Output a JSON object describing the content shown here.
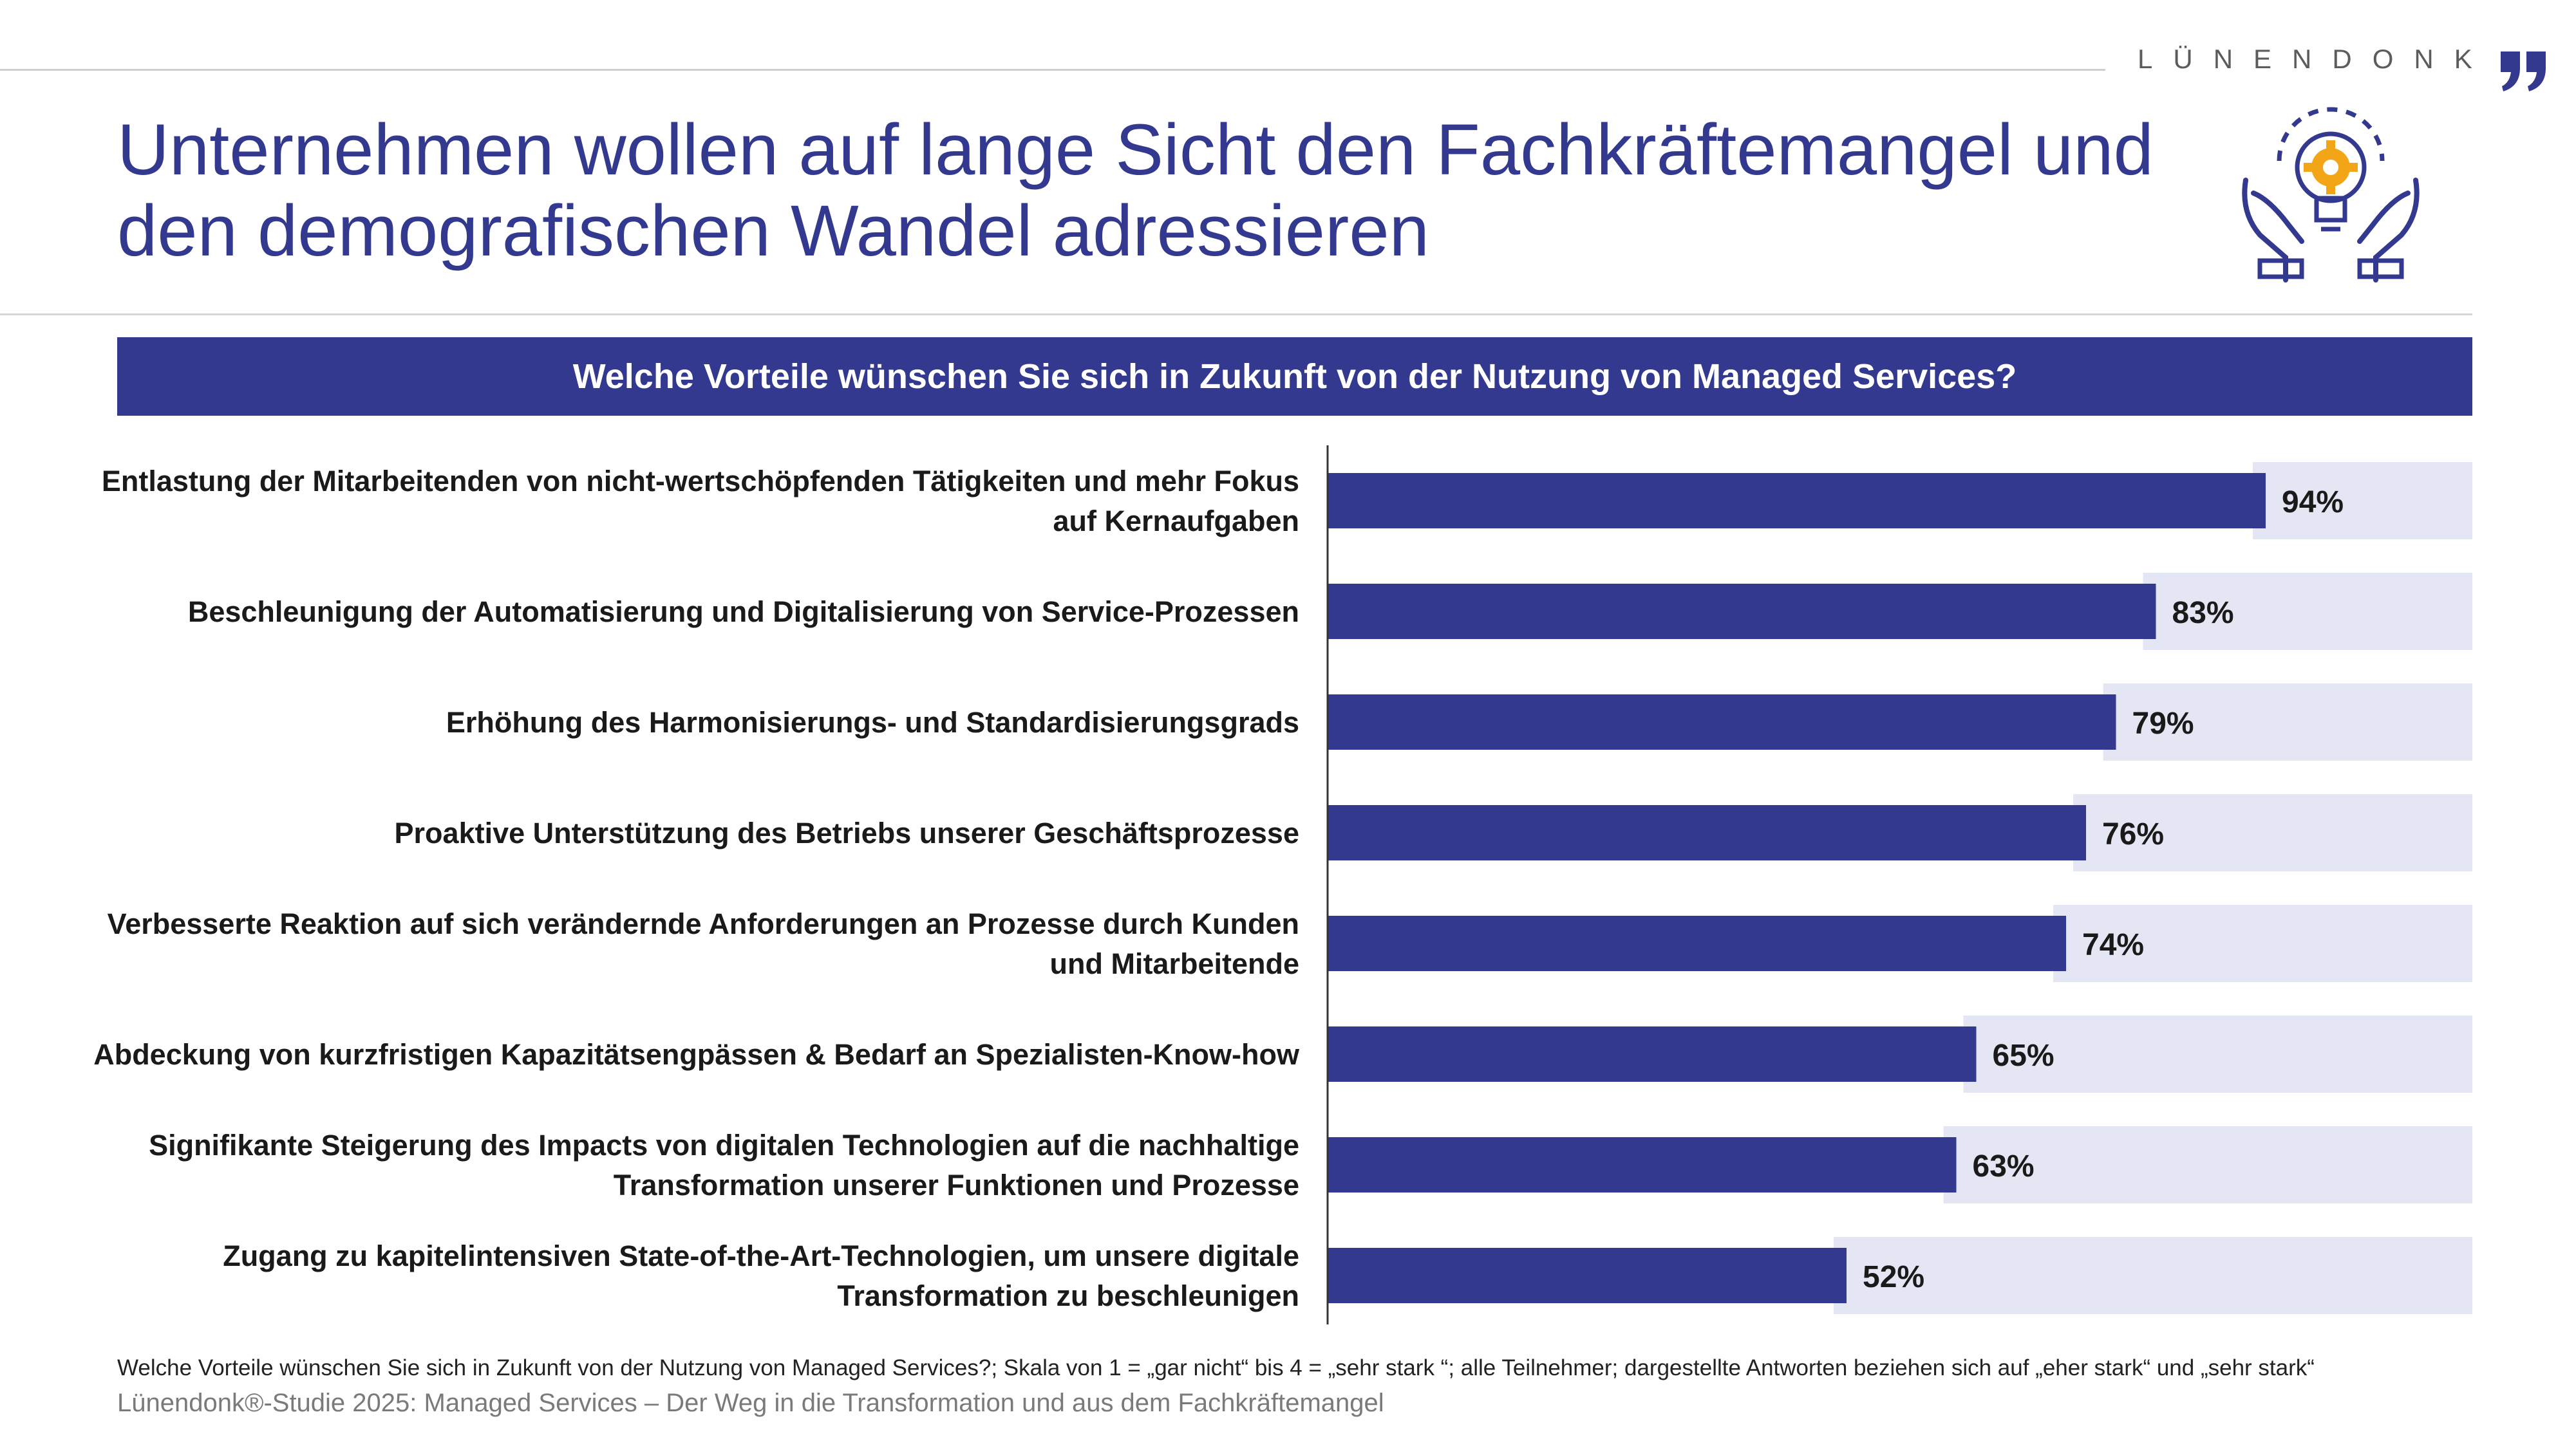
{
  "brand": {
    "name": "LÜNENDONK"
  },
  "header": {
    "title_line1": "Unternehmen wollen auf lange Sicht den Fachkräftemangel und",
    "title_line2": "den demografischen Wandel adressieren"
  },
  "colors": {
    "primary": "#33398f",
    "bar_background": "#e5e6f4",
    "accent_icon": "#f2a516",
    "text": "#1a1a1a"
  },
  "icons": {
    "hero": "hands-lightbulb-gear-icon",
    "brand": "quote-mark-icon"
  },
  "chart_data": {
    "type": "bar",
    "orientation": "horizontal",
    "title": "Welche Vorteile wünschen Sie sich in Zukunft von der Nutzung von Managed Services?",
    "categories": [
      [
        "Entlastung der Mitarbeitenden von nicht-wertschöpfenden Tätigkeiten und mehr Fokus",
        "auf Kernaufgaben"
      ],
      [
        "Beschleunigung der Automatisierung und Digitalisierung von Service-Prozessen"
      ],
      [
        "Erhöhung des Harmonisierungs- und Standardisierungsgrads"
      ],
      [
        "Proaktive Unterstützung des Betriebs unserer Geschäftsprozesse"
      ],
      [
        "Verbesserte Reaktion auf sich verändernde Anforderungen an Prozesse durch Kunden",
        "und Mitarbeitende"
      ],
      [
        "Abdeckung von kurzfristigen Kapazitätsengpässen & Bedarf an Spezialisten-Know-how"
      ],
      [
        "Signifikante Steigerung des Impacts von digitalen Technologien auf die nachhaltige",
        "Transformation unserer Funktionen und Prozesse"
      ],
      [
        "Zugang zu kapitelintensiven State-of-the-Art-Technologien, um unsere digitale",
        "Transformation zu beschleunigen"
      ]
    ],
    "values": [
      94,
      83,
      79,
      76,
      74,
      65,
      63,
      52
    ],
    "value_labels": [
      "94%",
      "83%",
      "79%",
      "76%",
      "74%",
      "65%",
      "63%",
      "52%"
    ],
    "xlim": [
      0,
      100
    ],
    "grid": false,
    "legend": "none"
  },
  "footnote": "Welche Vorteile wünschen Sie sich in Zukunft von der Nutzung von Managed Services?; Skala von 1 = „gar nicht“ bis 4 = „sehr stark “; alle Teilnehmer; dargestellte Antworten beziehen sich auf „eher stark“ und „sehr stark“",
  "source": "Lünendonk®-Studie 2025: Managed Services – Der Weg in die Transformation und aus dem Fachkräftemangel"
}
